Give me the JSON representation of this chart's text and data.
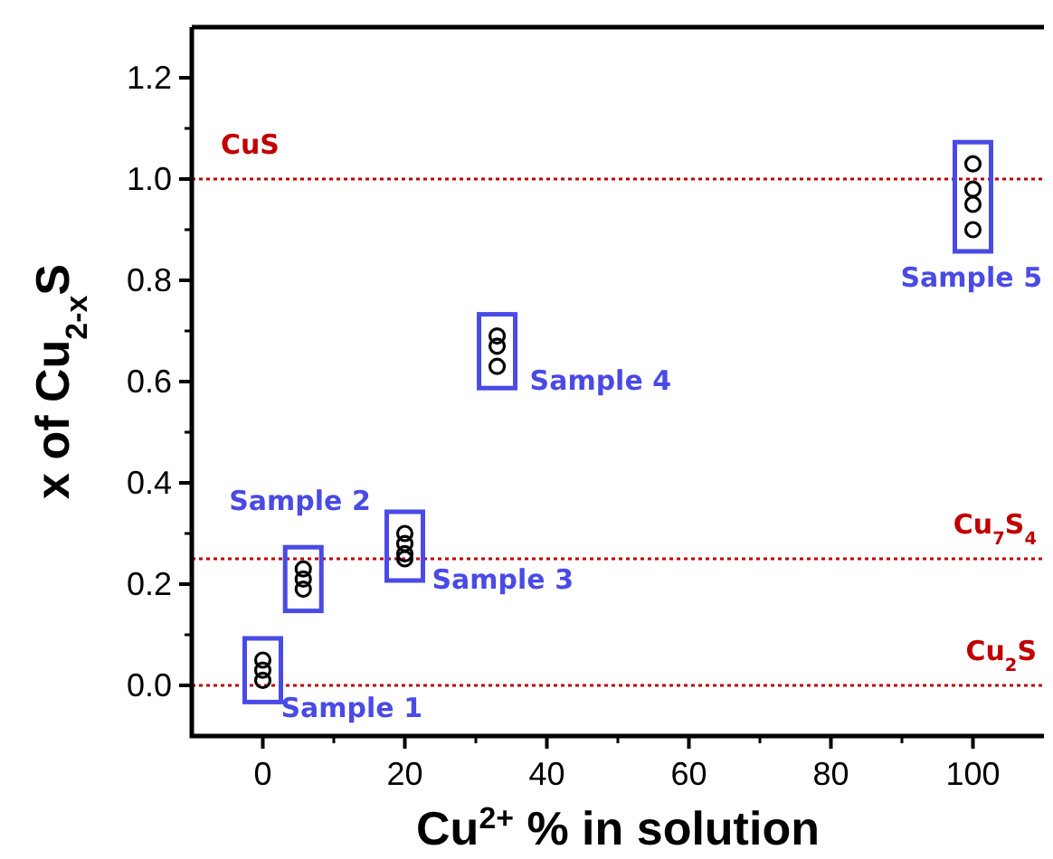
{
  "chart_data": {
    "type": "scatter",
    "xlabel": "Cu$^{2+}$ % in solution",
    "ylabel": "x of Cu$_{2-x}$S",
    "x": [
      0,
      0,
      0,
      5.7,
      5.7,
      5.7,
      20,
      20,
      20,
      20,
      33,
      33,
      33,
      100,
      100,
      100,
      100
    ],
    "series": [
      {
        "color": "#000000",
        "values": [
          0.05,
          0.03,
          0.01,
          0.23,
          0.21,
          0.19,
          0.3,
          0.28,
          0.26,
          0.25,
          0.69,
          0.67,
          0.63,
          1.03,
          0.98,
          0.95,
          0.9
        ]
      }
    ],
    "marker": "circle",
    "grid": false,
    "xlim": [
      -10,
      110
    ],
    "xticks": [
      0,
      20,
      40,
      60,
      80,
      100
    ],
    "ylim": [
      -0.1,
      1.3
    ],
    "yticks": [
      {
        "value": 0,
        "label": "0.0"
      },
      {
        "value": 0.2,
        "label": "0.2"
      },
      {
        "value": 0.4,
        "label": "0.4"
      },
      {
        "value": 0.6,
        "label": "0.6"
      },
      {
        "value": 0.8,
        "label": "0.8"
      },
      {
        "value": 1,
        "label": "1.0"
      },
      {
        "value": 1.2,
        "label": "1.2"
      }
    ],
    "ref_lines": [
      {
        "axis": "y",
        "value": 1,
        "label": "CuS",
        "color": "#c00000",
        "line_style": "dotted"
      },
      {
        "axis": "y",
        "value": 0.25,
        "label": "Cu$_{7}$S$_{4}$",
        "color": "#c00000",
        "line_style": "dotted"
      },
      {
        "axis": "y",
        "value": 0,
        "label": "Cu$_{2}$S",
        "color": "#c00000",
        "line_style": "dotted"
      }
    ],
    "annotations": [
      {
        "text": "Sample 1",
        "x": 0,
        "y": 0.03
      },
      {
        "text": "Sample 2",
        "x": 5.7,
        "y": 0.21
      },
      {
        "text": "Sample 3",
        "x": 20,
        "y": 0.28
      },
      {
        "text": "Sample 4",
        "x": 33,
        "y": 0.67
      },
      {
        "text": "Sample 5",
        "x": 100,
        "y": 0.98
      }
    ]
  }
}
